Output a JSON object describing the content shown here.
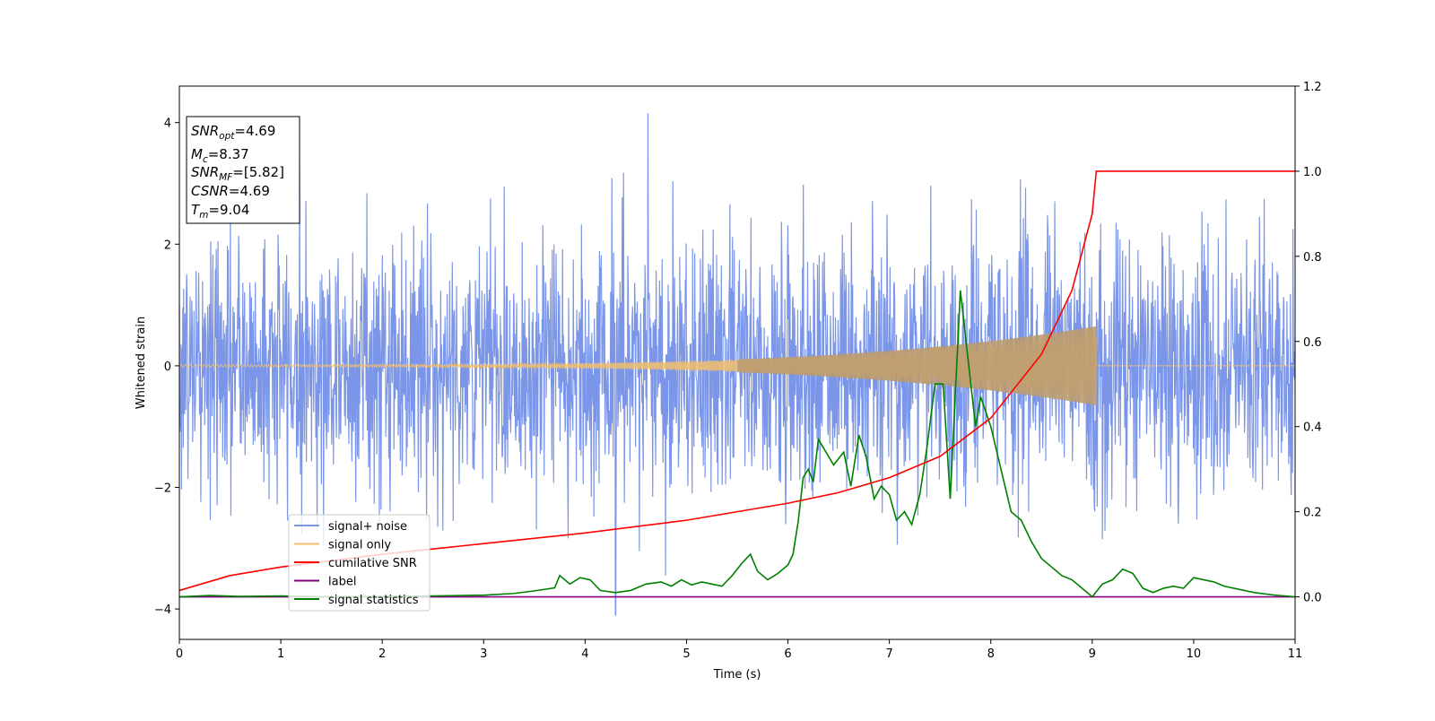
{
  "chart_data": {
    "type": "line",
    "title": "",
    "xlabel": "Time (s)",
    "ylabel": "Whitened strain",
    "y2label": "",
    "xlim": [
      0,
      11
    ],
    "ylim": [
      -4.5,
      4.6
    ],
    "y2lim": [
      -0.1,
      1.2
    ],
    "xticks": [
      "0",
      "1",
      "2",
      "3",
      "4",
      "5",
      "6",
      "7",
      "8",
      "9",
      "10",
      "11"
    ],
    "yticks": [
      "4",
      "2",
      "0",
      "−2",
      "−4"
    ],
    "y2ticks": [
      "1.2",
      "1.0",
      "0.8",
      "0.6",
      "0.4",
      "0.2",
      "0.0"
    ],
    "grid": false,
    "legend_position": "lower-left",
    "info_box": {
      "snr_opt": {
        "base": "SNR",
        "sub": "opt",
        "value": "=4.69"
      },
      "mc": {
        "base": "M",
        "sub": "c",
        "value": "=8.37"
      },
      "snr_mf": {
        "base": "SNR",
        "sub": "MF",
        "value": "=[5.82]"
      },
      "csnr": {
        "base": "CSNR",
        "sub": "",
        "value": "=4.69"
      },
      "tm": {
        "base": "T",
        "sub": "m",
        "value": "=9.04"
      }
    },
    "series": [
      {
        "name": "signal+ noise",
        "axis": "left",
        "color": "#7b96e8",
        "description": "dense noise trace approx between -3.2 and 3.2, peaks ~4.2 at x=4.62, trough ~-4.1 at x=4.3"
      },
      {
        "name": "signal only",
        "axis": "left",
        "color": "#f5c06a",
        "chirp": {
          "start": 0,
          "end": 9.04,
          "amp_start": 0.02,
          "amp_end": 0.65
        }
      },
      {
        "name": "cumilative SNR",
        "axis": "right",
        "color": "#ff0000",
        "x": [
          0,
          0.5,
          1,
          2,
          3,
          4,
          5,
          6,
          6.5,
          7,
          7.5,
          8,
          8.5,
          8.8,
          9.0,
          9.04,
          9.5,
          10,
          11
        ],
        "y": [
          0.015,
          0.05,
          0.07,
          0.1,
          0.125,
          0.15,
          0.18,
          0.22,
          0.245,
          0.28,
          0.33,
          0.42,
          0.57,
          0.72,
          0.9,
          1.0,
          1.0,
          1.0,
          1.0
        ]
      },
      {
        "name": "label",
        "axis": "right",
        "color": "#800080",
        "x": [
          0,
          11
        ],
        "y": [
          0,
          0
        ]
      },
      {
        "name": "signal statistics",
        "axis": "right",
        "color": "#008000",
        "x": [
          0,
          0.3,
          0.6,
          1.0,
          1.5,
          2.0,
          2.5,
          3.0,
          3.3,
          3.5,
          3.7,
          3.75,
          3.85,
          3.95,
          4.05,
          4.15,
          4.3,
          4.45,
          4.6,
          4.75,
          4.85,
          4.95,
          5.05,
          5.15,
          5.25,
          5.35,
          5.45,
          5.55,
          5.63,
          5.7,
          5.8,
          5.9,
          6.0,
          6.05,
          6.1,
          6.15,
          6.2,
          6.25,
          6.3,
          6.35,
          6.45,
          6.55,
          6.62,
          6.7,
          6.77,
          6.85,
          6.92,
          7.0,
          7.07,
          7.15,
          7.22,
          7.3,
          7.37,
          7.45,
          7.53,
          7.6,
          7.7,
          7.77,
          7.85,
          7.9,
          8.0,
          8.1,
          8.2,
          8.3,
          8.4,
          8.5,
          8.6,
          8.7,
          8.8,
          8.9,
          9.0,
          9.1,
          9.2,
          9.3,
          9.4,
          9.5,
          9.6,
          9.7,
          9.8,
          9.9,
          10.0,
          10.1,
          10.2,
          10.3,
          10.4,
          10.5,
          10.6,
          10.8,
          11.0
        ],
        "y": [
          0.0,
          0.003,
          0.001,
          0.002,
          0.0,
          0.001,
          0.002,
          0.004,
          0.008,
          0.014,
          0.021,
          0.05,
          0.03,
          0.045,
          0.04,
          0.015,
          0.01,
          0.015,
          0.03,
          0.035,
          0.025,
          0.04,
          0.028,
          0.035,
          0.03,
          0.025,
          0.05,
          0.08,
          0.1,
          0.06,
          0.04,
          0.055,
          0.075,
          0.1,
          0.175,
          0.28,
          0.3,
          0.27,
          0.37,
          0.35,
          0.31,
          0.34,
          0.26,
          0.38,
          0.33,
          0.23,
          0.26,
          0.24,
          0.18,
          0.2,
          0.17,
          0.24,
          0.35,
          0.5,
          0.5,
          0.23,
          0.72,
          0.57,
          0.4,
          0.47,
          0.4,
          0.3,
          0.2,
          0.18,
          0.13,
          0.09,
          0.07,
          0.05,
          0.04,
          0.02,
          0.0,
          0.03,
          0.04,
          0.065,
          0.055,
          0.02,
          0.01,
          0.02,
          0.025,
          0.02,
          0.045,
          0.04,
          0.035,
          0.025,
          0.02,
          0.015,
          0.01,
          0.004,
          0.0
        ]
      }
    ]
  }
}
